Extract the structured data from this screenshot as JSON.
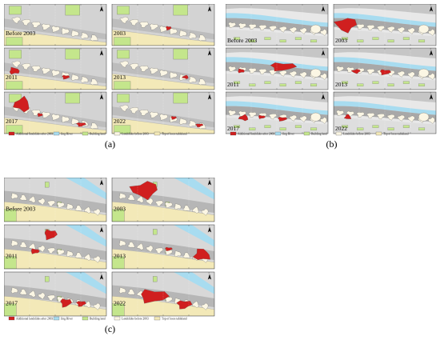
{
  "figures": [
    {
      "id": "a",
      "caption": "(a)",
      "panels": [
        {
          "label": "Before 2003"
        },
        {
          "label": "2003"
        },
        {
          "label": "2011"
        },
        {
          "label": "2013"
        },
        {
          "label": "2017"
        },
        {
          "label": "2022"
        }
      ]
    },
    {
      "id": "b",
      "caption": "(b)",
      "panels": [
        {
          "label": "Before 2003"
        },
        {
          "label": "2003"
        },
        {
          "label": "2011"
        },
        {
          "label": "2013"
        },
        {
          "label": "2017"
        },
        {
          "label": "2022"
        }
      ]
    },
    {
      "id": "c",
      "caption": "(c)",
      "panels": [
        {
          "label": "Before 2003"
        },
        {
          "label": "2003"
        },
        {
          "label": "2011"
        },
        {
          "label": "2013"
        },
        {
          "label": "2017"
        },
        {
          "label": "2022"
        }
      ]
    }
  ],
  "legend": [
    {
      "label": "Additional landslides after 2003",
      "color": "#d01f1f"
    },
    {
      "label": "Jing River",
      "color": "#a8dcf0"
    },
    {
      "label": "Building land",
      "color": "#c4e68c"
    },
    {
      "label": "Landslides before 2003",
      "color": "#fbf6e4"
    },
    {
      "label": "Top of loess tableland",
      "color": "#f3e9b8"
    }
  ]
}
